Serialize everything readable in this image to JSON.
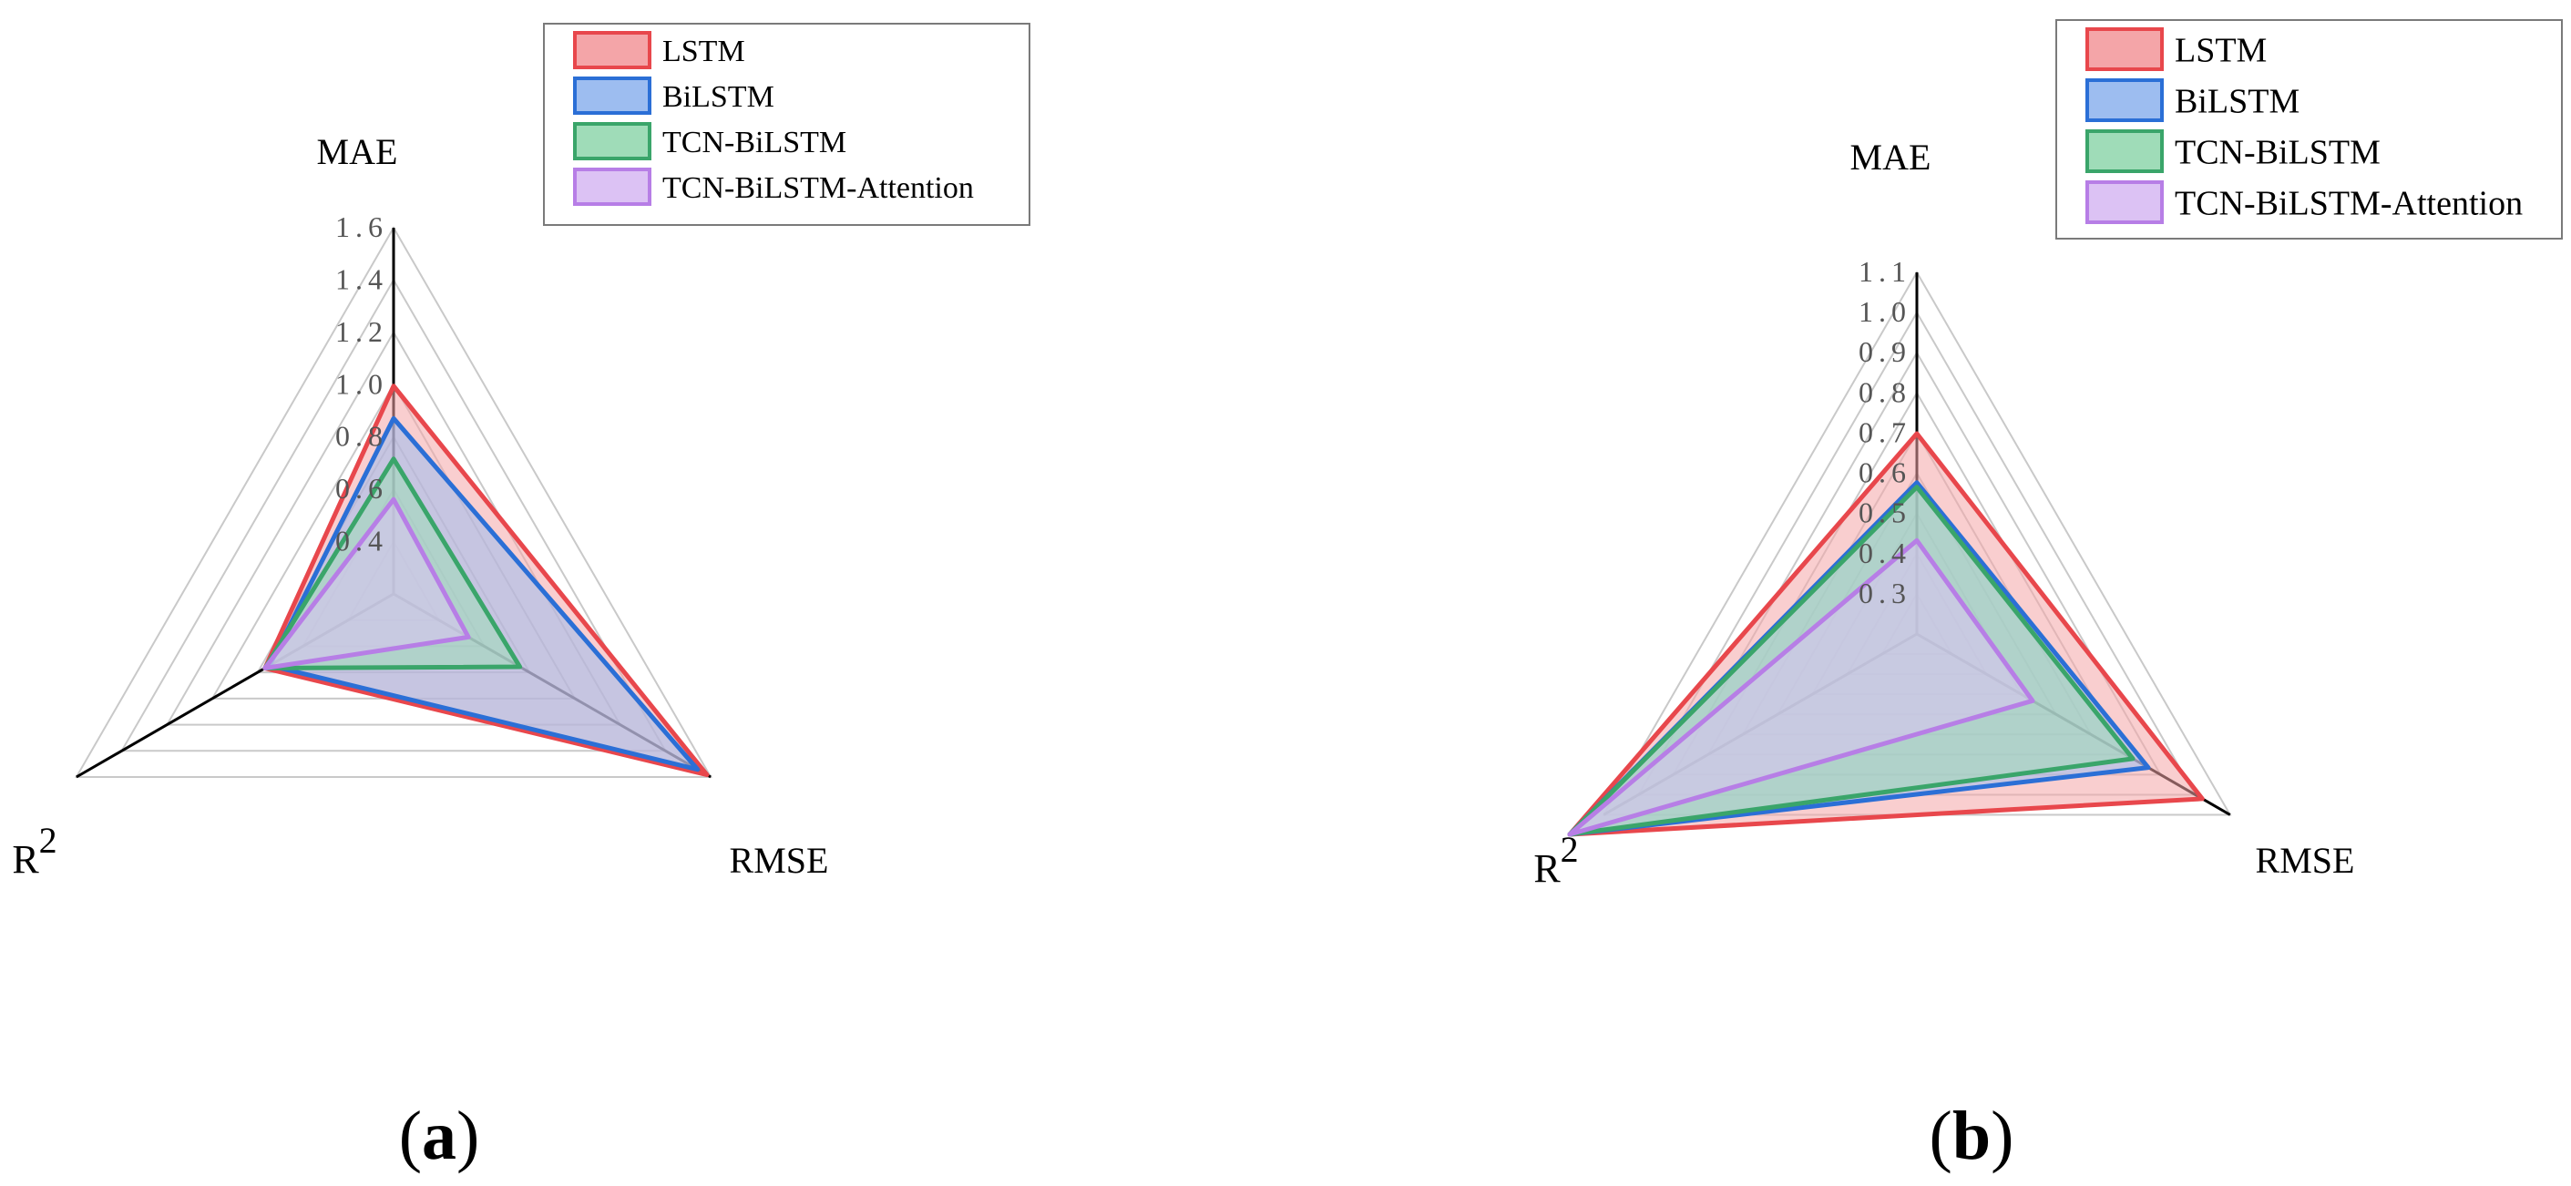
{
  "legend": [
    {
      "name": "LSTM",
      "stroke": "#e8474c",
      "fill": "#f4a5a8"
    },
    {
      "name": "BiLSTM",
      "stroke": "#2b6fd6",
      "fill": "#9dbdf0"
    },
    {
      "name": "TCN-BiLSTM",
      "stroke": "#3aa56a",
      "fill": "#9fdcb8"
    },
    {
      "name": "TCN-BiLSTM-Attention",
      "stroke": "#b77ee6",
      "fill": "#dcc2f4"
    }
  ],
  "panels": [
    {
      "label_open": "(",
      "label_letter": "a",
      "label_close": ")"
    },
    {
      "label_open": "(",
      "label_letter": "b",
      "label_close": ")"
    }
  ],
  "chart_data": [
    {
      "type": "radar",
      "axes": [
        "MAE",
        "RMSE",
        "R2"
      ],
      "axis_display": {
        "MAE": "MAE",
        "RMSE": "RMSE",
        "R2_base": "R",
        "R2_sup": "2"
      },
      "range": [
        0.2,
        1.6
      ],
      "ticks": [
        "0.4",
        "0.6",
        "0.8",
        "1.0",
        "1.2",
        "1.4",
        "1.6"
      ],
      "grid": true,
      "legend_position": "top-right",
      "series": [
        {
          "name": "LSTM",
          "values": {
            "MAE": 0.97,
            "RMSE": 1.54,
            "R2": 0.75
          }
        },
        {
          "name": "BiLSTM",
          "values": {
            "MAE": 0.85,
            "RMSE": 1.5,
            "R2": 0.73
          }
        },
        {
          "name": "TCN-BiLSTM",
          "values": {
            "MAE": 0.7,
            "RMSE": 0.74,
            "R2": 0.75
          }
        },
        {
          "name": "TCN-BiLSTM-Attention",
          "values": {
            "MAE": 0.55,
            "RMSE": 0.52,
            "R2": 0.75
          }
        }
      ]
    },
    {
      "type": "radar",
      "axes": [
        "MAE",
        "RMSE",
        "R2"
      ],
      "axis_display": {
        "MAE": "MAE",
        "RMSE": "RMSE",
        "R2_base": "R",
        "R2_sup": "2"
      },
      "range": [
        0.2,
        1.1
      ],
      "ticks": [
        "0.3",
        "0.4",
        "0.5",
        "0.6",
        "0.7",
        "0.8",
        "0.9",
        "1.0",
        "1.1"
      ],
      "grid": true,
      "legend_position": "top-right",
      "series": [
        {
          "name": "LSTM",
          "values": {
            "MAE": 0.65,
            "RMSE": 0.94,
            "R2": 1.1
          }
        },
        {
          "name": "BiLSTM",
          "values": {
            "MAE": 0.54,
            "RMSE": 0.8,
            "R2": 1.1
          }
        },
        {
          "name": "TCN-BiLSTM",
          "values": {
            "MAE": 0.53,
            "RMSE": 0.76,
            "R2": 1.1
          }
        },
        {
          "name": "TCN-BiLSTM-Attention",
          "values": {
            "MAE": 0.41,
            "RMSE": 0.5,
            "R2": 1.1
          }
        }
      ]
    }
  ]
}
